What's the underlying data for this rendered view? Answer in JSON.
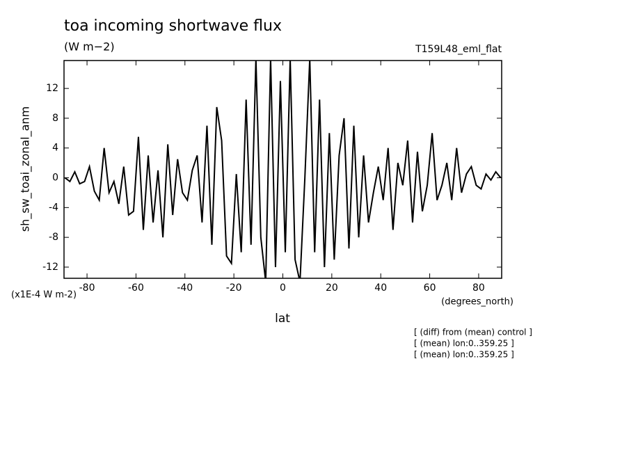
{
  "chart_data": {
    "type": "line",
    "title": "toa incoming shortwave flux",
    "subtitle": "(W m−2)",
    "run_label": "T159L48_eml_flat",
    "y_label": "sh_sw_toai_zonal_anm",
    "y_units": "(x1E-4 W m-2)",
    "x_units": "(degrees_north)",
    "x_label": "lat",
    "notes": [
      "[ (diff) from (mean) control ]",
      "[ (mean) lon:0..359.25 ]",
      "[ (mean) lon:0..359.25 ]"
    ],
    "x": [
      -89,
      -87,
      -85,
      -83,
      -81,
      -79,
      -77,
      -75,
      -73,
      -71,
      -69,
      -67,
      -65,
      -63,
      -61,
      -59,
      -57,
      -55,
      -53,
      -51,
      -49,
      -47,
      -45,
      -43,
      -41,
      -39,
      -37,
      -35,
      -33,
      -31,
      -29,
      -27,
      -25,
      -23,
      -21,
      -19,
      -17,
      -15,
      -13,
      -11,
      -9,
      -7,
      -5,
      -3,
      -1,
      1,
      3,
      5,
      7,
      9,
      11,
      13,
      15,
      17,
      19,
      21,
      23,
      25,
      27,
      29,
      31,
      33,
      35,
      37,
      39,
      41,
      43,
      45,
      47,
      49,
      51,
      53,
      55,
      57,
      59,
      61,
      63,
      65,
      67,
      69,
      71,
      73,
      75,
      77,
      79,
      81,
      83,
      85,
      87,
      89
    ],
    "series": [
      {
        "name": "sh_sw_toai_zonal_anm",
        "color": "#000000",
        "values": [
          0,
          -0.5,
          0.8,
          -0.8,
          -0.5,
          1.5,
          -1.8,
          -3,
          4,
          -2,
          -0.5,
          -3.5,
          1.5,
          -5,
          -4.5,
          5.5,
          -7,
          3,
          -6,
          1,
          -8,
          4.5,
          -5,
          2.5,
          -2,
          -3,
          1,
          3,
          -6,
          7,
          -9,
          9.5,
          5,
          -10.5,
          -11.5,
          0.5,
          -10,
          10.5,
          -9,
          16,
          -8,
          -14,
          16,
          -12,
          13,
          -10,
          16,
          -11,
          -14,
          0,
          16,
          -10,
          10.5,
          -12,
          6,
          -11,
          3,
          8,
          -9.5,
          7,
          -8,
          3,
          -6,
          -2,
          1.5,
          -3,
          4,
          -7,
          2,
          -1,
          5,
          -6,
          3.5,
          -4.5,
          -1,
          6,
          -3,
          -1,
          2,
          -3,
          4,
          -2,
          0.5,
          1.5,
          -1,
          -1.5,
          0.5,
          -0.3,
          0.8,
          0
        ]
      }
    ],
    "xlim": [
      -89.4,
      89.4
    ],
    "ylim": [
      -13.5,
      15.75
    ],
    "xticks": [
      -80,
      -60,
      -40,
      -20,
      0,
      20,
      40,
      60,
      80
    ],
    "yticks": [
      -12,
      -8,
      -4,
      0,
      4,
      8,
      12
    ]
  }
}
